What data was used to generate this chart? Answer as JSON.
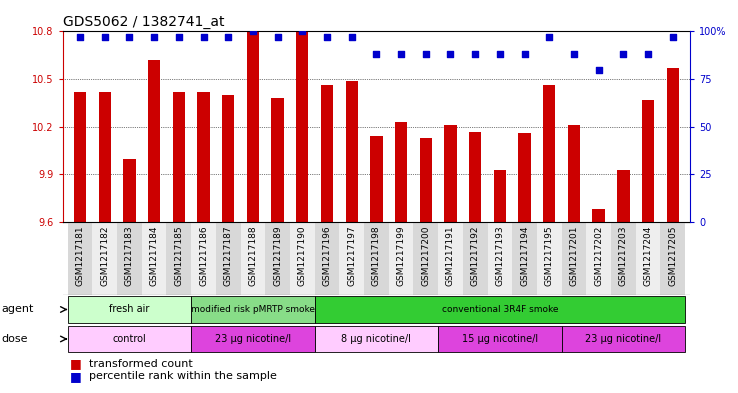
{
  "title": "GDS5062 / 1382741_at",
  "samples": [
    "GSM1217181",
    "GSM1217182",
    "GSM1217183",
    "GSM1217184",
    "GSM1217185",
    "GSM1217186",
    "GSM1217187",
    "GSM1217188",
    "GSM1217189",
    "GSM1217190",
    "GSM1217196",
    "GSM1217197",
    "GSM1217198",
    "GSM1217199",
    "GSM1217200",
    "GSM1217191",
    "GSM1217192",
    "GSM1217193",
    "GSM1217194",
    "GSM1217195",
    "GSM1217201",
    "GSM1217202",
    "GSM1217203",
    "GSM1217204",
    "GSM1217205"
  ],
  "bar_values": [
    10.42,
    10.42,
    10.0,
    10.62,
    10.42,
    10.42,
    10.4,
    10.8,
    10.38,
    10.8,
    10.46,
    10.49,
    10.14,
    10.23,
    10.13,
    10.21,
    10.17,
    9.93,
    10.16,
    10.46,
    10.21,
    9.68,
    9.93,
    10.37,
    10.57
  ],
  "percentile_values": [
    97,
    97,
    97,
    97,
    97,
    97,
    97,
    100,
    97,
    100,
    97,
    97,
    88,
    88,
    88,
    88,
    88,
    88,
    88,
    97,
    88,
    80,
    88,
    88,
    97
  ],
  "bar_color": "#cc0000",
  "dot_color": "#0000cc",
  "ylim_left": [
    9.6,
    10.8
  ],
  "ylim_right": [
    0,
    100
  ],
  "yticks_left": [
    9.6,
    9.9,
    10.2,
    10.5,
    10.8
  ],
  "yticks_right": [
    0,
    25,
    50,
    75,
    100
  ],
  "ytick_labels_right": [
    "0",
    "25",
    "50",
    "75",
    "100%"
  ],
  "grid_values": [
    9.9,
    10.2,
    10.5
  ],
  "agent_groups": [
    {
      "label": "fresh air",
      "start": 0,
      "end": 5,
      "color": "#ccffcc"
    },
    {
      "label": "modified risk pMRTP smoke",
      "start": 5,
      "end": 10,
      "color": "#88dd88"
    },
    {
      "label": "conventional 3R4F smoke",
      "start": 10,
      "end": 25,
      "color": "#33cc33"
    }
  ],
  "dose_groups": [
    {
      "label": "control",
      "start": 0,
      "end": 5,
      "color": "#ffccff"
    },
    {
      "label": "23 µg nicotine/l",
      "start": 5,
      "end": 10,
      "color": "#dd44dd"
    },
    {
      "label": "8 µg nicotine/l",
      "start": 10,
      "end": 15,
      "color": "#ffccff"
    },
    {
      "label": "15 µg nicotine/l",
      "start": 15,
      "end": 20,
      "color": "#dd44dd"
    },
    {
      "label": "23 µg nicotine/l",
      "start": 20,
      "end": 25,
      "color": "#dd44dd"
    }
  ],
  "legend_items": [
    {
      "label": "transformed count",
      "color": "#cc0000"
    },
    {
      "label": "percentile rank within the sample",
      "color": "#0000cc"
    }
  ],
  "background_color": "#ffffff",
  "title_fontsize": 10,
  "tick_fontsize": 7,
  "bar_width": 0.5
}
